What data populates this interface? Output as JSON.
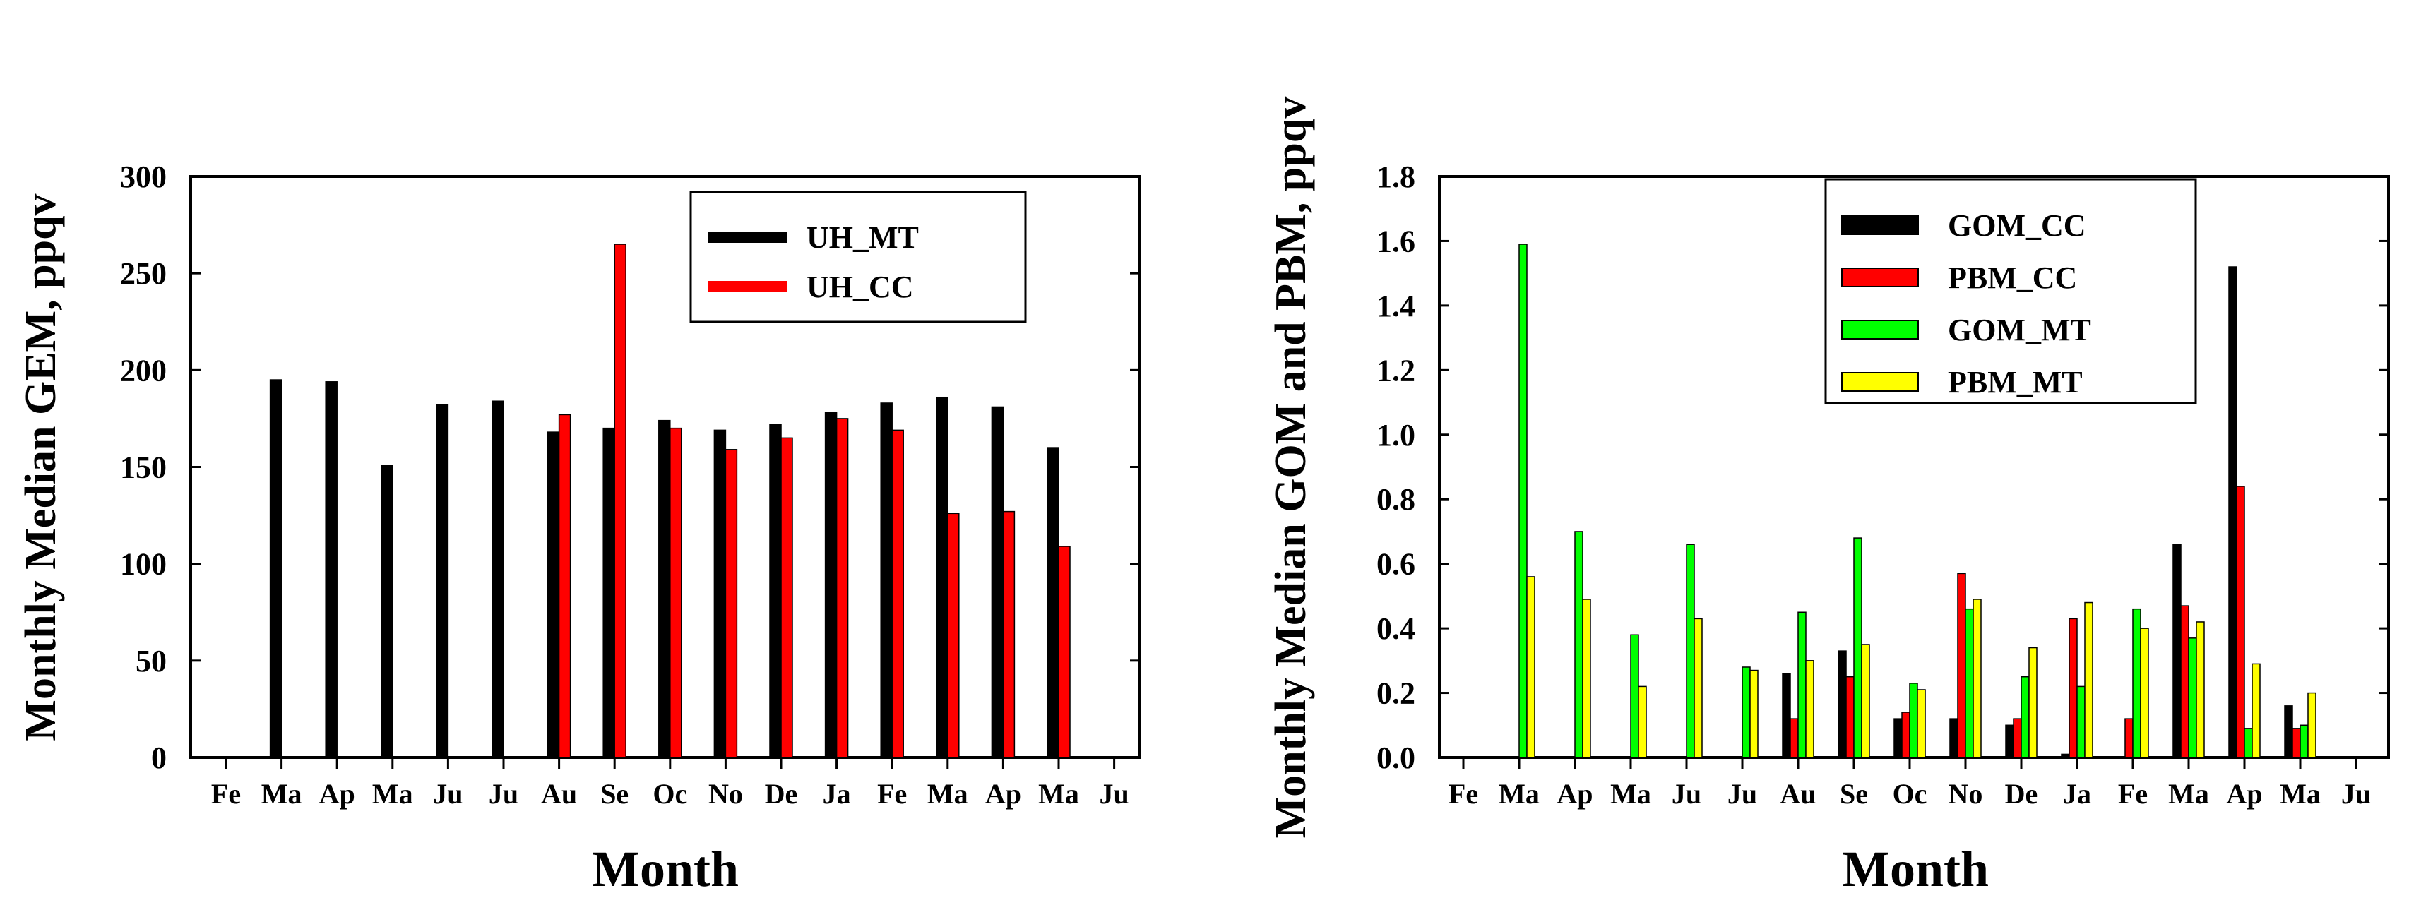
{
  "chart_data": [
    {
      "type": "bar",
      "title": "",
      "xlabel": "Month",
      "ylabel": "Monthly Median GEM, ppqv",
      "ylim": [
        0,
        300
      ],
      "yticks": [
        "0",
        "50",
        "100",
        "150",
        "200",
        "250",
        "300"
      ],
      "categories": [
        "Fe",
        "Ma",
        "Ap",
        "Ma",
        "Ju",
        "Ju",
        "Au",
        "Se",
        "Oc",
        "No",
        "De",
        "Ja",
        "Fe",
        "Ma",
        "Ap",
        "Ma",
        "Ju"
      ],
      "legend_position": "top-right",
      "series": [
        {
          "name": "UH_MT",
          "color": "#000000",
          "values": [
            null,
            195,
            194,
            151,
            182,
            184,
            168,
            170,
            174,
            169,
            172,
            178,
            183,
            186,
            181,
            160,
            null
          ]
        },
        {
          "name": "UH_CC",
          "color": "#ff0000",
          "values": [
            null,
            null,
            null,
            null,
            null,
            null,
            177,
            265,
            170,
            159,
            165,
            175,
            169,
            126,
            127,
            109,
            null
          ]
        }
      ]
    },
    {
      "type": "bar",
      "title": "",
      "xlabel": "Month",
      "ylabel": "Monthly Median GOM and PBM, ppqv",
      "ylim": [
        0,
        1.8
      ],
      "yticks": [
        "0.0",
        "0.2",
        "0.4",
        "0.6",
        "0.8",
        "1.0",
        "1.2",
        "1.4",
        "1.6",
        "1.8"
      ],
      "categories": [
        "Fe",
        "Ma",
        "Ap",
        "Ma",
        "Ju",
        "Ju",
        "Au",
        "Se",
        "Oc",
        "No",
        "De",
        "Ja",
        "Fe",
        "Ma",
        "Ap",
        "Ma",
        "Ju"
      ],
      "legend_position": "top-center",
      "series": [
        {
          "name": "GOM_CC",
          "color": "#000000",
          "values": [
            null,
            null,
            null,
            null,
            null,
            null,
            0.26,
            0.33,
            0.12,
            0.12,
            0.1,
            0.01,
            null,
            0.66,
            1.52,
            0.16,
            null
          ]
        },
        {
          "name": "PBM_CC",
          "color": "#ff0000",
          "values": [
            null,
            null,
            null,
            null,
            null,
            null,
            0.12,
            0.25,
            0.14,
            0.57,
            0.12,
            0.43,
            0.12,
            0.47,
            0.84,
            0.09,
            null
          ]
        },
        {
          "name": "GOM_MT",
          "color": "#00ff00",
          "values": [
            null,
            1.59,
            0.7,
            0.38,
            0.66,
            0.28,
            0.45,
            0.68,
            0.23,
            0.46,
            0.25,
            0.22,
            0.46,
            0.37,
            0.09,
            0.1,
            null
          ]
        },
        {
          "name": "PBM_MT",
          "color": "#ffff00",
          "values": [
            null,
            0.56,
            0.49,
            0.22,
            0.43,
            0.27,
            0.3,
            0.35,
            0.21,
            0.49,
            0.34,
            0.48,
            0.4,
            0.42,
            0.29,
            0.2,
            null
          ]
        }
      ]
    }
  ]
}
